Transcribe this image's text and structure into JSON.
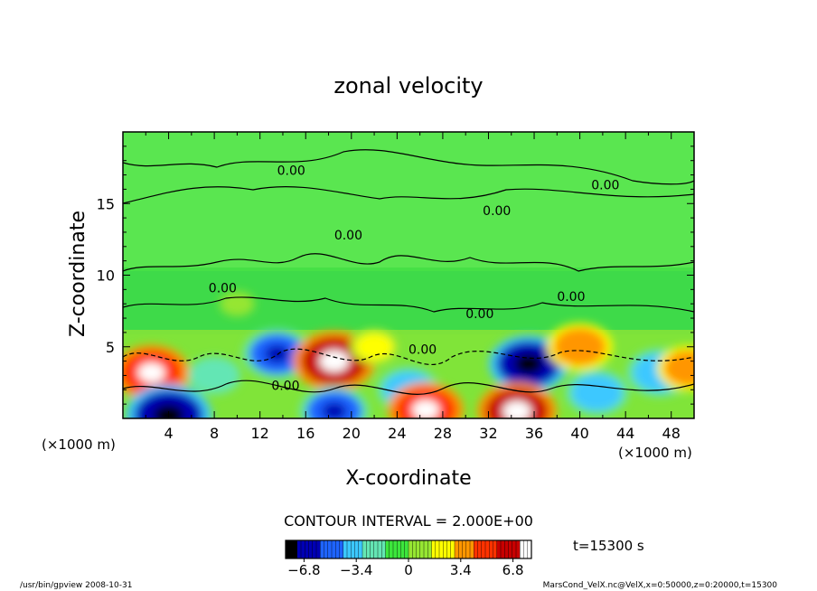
{
  "chart_data": {
    "type": "heatmap",
    "title": "zonal velocity",
    "xlabel": "X-coordinate",
    "ylabel": "Z-coordinate",
    "x_units_left": "(×1000 m)",
    "x_units_right": "(×1000 m)",
    "xlim": [
      0,
      50
    ],
    "ylim": [
      0,
      20
    ],
    "x_ticks": [
      4,
      8,
      12,
      16,
      20,
      24,
      28,
      32,
      36,
      40,
      44,
      48
    ],
    "y_ticks": [
      5,
      10,
      15
    ],
    "contour_interval_text": "CONTOUR INTERVAL = 2.000E+00",
    "time_text": "t=15300 s",
    "colorbar": {
      "range": [
        -8,
        8
      ],
      "tick_values": [
        -6.8,
        -3.4,
        0,
        3.4,
        6.8
      ],
      "tick_labels": [
        "−6.8",
        "−3.4",
        "0",
        "3.4",
        "6.8"
      ],
      "colors": [
        "#000000",
        "#0000b4",
        "#1e64ff",
        "#3cc8ff",
        "#64e6b4",
        "#3ce63c",
        "#96e632",
        "#ffff00",
        "#ff9600",
        "#ff3200",
        "#c80000",
        "#ffffff"
      ]
    },
    "contour_labels": [
      {
        "x": 13.5,
        "z": 17.0,
        "text": "0.00"
      },
      {
        "x": 41.0,
        "z": 16.0,
        "text": "0.00"
      },
      {
        "x": 31.5,
        "z": 14.2,
        "text": "0.00"
      },
      {
        "x": 18.5,
        "z": 12.5,
        "text": "0.00"
      },
      {
        "x": 7.5,
        "z": 8.8,
        "text": "0.00"
      },
      {
        "x": 30.0,
        "z": 7.0,
        "text": "0.00"
      },
      {
        "x": 38.0,
        "z": 8.2,
        "text": "0.00"
      },
      {
        "x": 25.0,
        "z": 4.5,
        "text": "0.00"
      },
      {
        "x": 13.0,
        "z": 2.0,
        "text": "0.00"
      }
    ],
    "features": [
      {
        "x": 2.5,
        "z": 3.2,
        "value": 6.5
      },
      {
        "x": 4.0,
        "z": 0.2,
        "value": -8.0
      },
      {
        "x": 8.0,
        "z": 3.0,
        "value": -3.0
      },
      {
        "x": 13.5,
        "z": 4.5,
        "value": -5.5
      },
      {
        "x": 18.5,
        "z": 4.0,
        "value": 7.5
      },
      {
        "x": 18.5,
        "z": 0.5,
        "value": -5.5
      },
      {
        "x": 25.0,
        "z": 2.0,
        "value": -4.5
      },
      {
        "x": 26.5,
        "z": 0.6,
        "value": 6.5
      },
      {
        "x": 35.5,
        "z": 3.8,
        "value": -7.0
      },
      {
        "x": 34.5,
        "z": 0.5,
        "value": 7.0
      },
      {
        "x": 40.0,
        "z": 5.0,
        "value": 5.0
      },
      {
        "x": 41.5,
        "z": 1.8,
        "value": -4.5
      },
      {
        "x": 47.0,
        "z": 3.2,
        "value": -5.0
      },
      {
        "x": 49.5,
        "z": 3.5,
        "value": 4.5
      },
      {
        "x": 22.0,
        "z": 5.0,
        "value": 2.5
      },
      {
        "x": 10.0,
        "z": 8.0,
        "value": 0.5
      }
    ]
  },
  "footer": {
    "left": "/usr/bin/gpview   2008-10-31",
    "right": "MarsCond_VelX.nc@VelX,x=0:50000,z=0:20000,t=15300"
  }
}
